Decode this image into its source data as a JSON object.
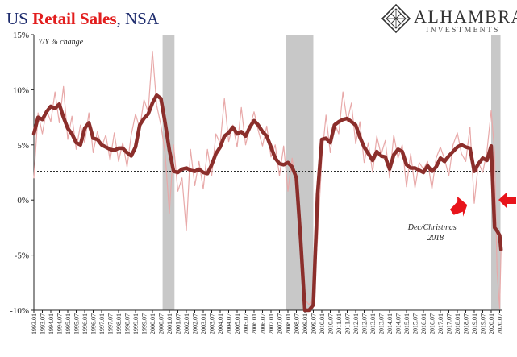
{
  "title": {
    "part1": "US ",
    "part2": "Retail Sales",
    "part3": ", NSA"
  },
  "colors": {
    "title_blue": "#1f2d6e",
    "title_red": "#e21e1e",
    "raw_series": "#e8a9a9",
    "smoothed_series": "#8b2e2b",
    "recession": "#c8c8c8",
    "arrow": "#e8141b"
  },
  "logo": {
    "name": "ALHAMBRA",
    "subtitle": "INVESTMENTS",
    "icon": "diamond-lattice-icon"
  },
  "chart_data": {
    "type": "line",
    "ylabel": "Y/Y % change",
    "ylim": [
      -10,
      15
    ],
    "yticks": [
      "15%",
      "10%",
      "5%",
      "0%",
      "-5%",
      "-10%"
    ],
    "xlim": [
      "1993-01",
      "2020-07"
    ],
    "xticks": [
      "1993.01",
      "1993.07",
      "1994.01",
      "1994.07",
      "1995.01",
      "1995.07",
      "1996.01",
      "1996.07",
      "1997.01",
      "1997.07",
      "1998.01",
      "1998.07",
      "1999.01",
      "1999.07",
      "2000.01",
      "2000.07",
      "2001.01",
      "2001.07",
      "2002.01",
      "2002.07",
      "2003.01",
      "2003.07",
      "2004.01",
      "2004.07",
      "2005.01",
      "2005.07",
      "2006.01",
      "2006.07",
      "2007.01",
      "2007.07",
      "2008.01",
      "2008.07",
      "2009.01",
      "2009.07",
      "2010.01",
      "2010.07",
      "2011.01",
      "2011.07",
      "2012.01",
      "2012.07",
      "2013.01",
      "2013.07",
      "2014.01",
      "2014.07",
      "2015.01",
      "2015.07",
      "2016.01",
      "2016.07",
      "2017.01",
      "2017.07",
      "2018.01",
      "2018.07",
      "2019.01",
      "2019.07",
      "2020.01",
      "2020.07"
    ],
    "reference_line": {
      "y": 2.6,
      "style": "dotted"
    },
    "recessions": [
      {
        "start": 2000.6,
        "end": 2001.3
      },
      {
        "start": 2007.9,
        "end": 2009.5
      },
      {
        "start": 2020.0,
        "end": 2020.55
      }
    ],
    "series": [
      {
        "style": "thin",
        "x": [
          1993.0,
          1993.25,
          1993.5,
          1993.75,
          1994.0,
          1994.25,
          1994.5,
          1994.75,
          1995.0,
          1995.25,
          1995.5,
          1995.75,
          1996.0,
          1996.25,
          1996.5,
          1996.75,
          1997.0,
          1997.25,
          1997.5,
          1997.75,
          1998.0,
          1998.25,
          1998.5,
          1998.75,
          1999.0,
          1999.25,
          1999.5,
          1999.75,
          2000.0,
          2000.25,
          2000.5,
          2000.75,
          2001.0,
          2001.25,
          2001.5,
          2001.75,
          2002.0,
          2002.25,
          2002.5,
          2002.75,
          2003.0,
          2003.25,
          2003.5,
          2003.75,
          2004.0,
          2004.25,
          2004.5,
          2004.75,
          2005.0,
          2005.25,
          2005.5,
          2005.75,
          2006.0,
          2006.25,
          2006.5,
          2006.75,
          2007.0,
          2007.25,
          2007.5,
          2007.75,
          2008.0,
          2008.25,
          2008.5,
          2008.75,
          2009.0,
          2009.25,
          2009.5,
          2009.75,
          2010.0,
          2010.25,
          2010.5,
          2010.75,
          2011.0,
          2011.25,
          2011.5,
          2011.75,
          2012.0,
          2012.25,
          2012.5,
          2012.75,
          2013.0,
          2013.25,
          2013.5,
          2013.75,
          2014.0,
          2014.25,
          2014.5,
          2014.75,
          2015.0,
          2015.25,
          2015.5,
          2015.75,
          2016.0,
          2016.25,
          2016.5,
          2016.75,
          2017.0,
          2017.25,
          2017.5,
          2017.75,
          2018.0,
          2018.25,
          2018.5,
          2018.75,
          2019.0,
          2019.25,
          2019.5,
          2019.75,
          2020.0,
          2020.2,
          2020.35,
          2020.5,
          2020.58
        ],
        "values": [
          2.0,
          7.9,
          6.0,
          8.2,
          7.1,
          9.8,
          7.0,
          10.3,
          5.5,
          7.6,
          4.6,
          6.8,
          5.2,
          7.9,
          4.3,
          6.2,
          4.8,
          5.9,
          3.6,
          6.1,
          3.5,
          5.2,
          3.0,
          5.9,
          7.8,
          6.5,
          9.1,
          8.0,
          13.5,
          8.6,
          6.8,
          4.2,
          -1.2,
          5.0,
          0.8,
          2.0,
          -2.8,
          4.6,
          1.3,
          3.5,
          1.0,
          4.6,
          2.2,
          6.0,
          5.1,
          9.2,
          5.3,
          6.8,
          4.8,
          8.4,
          5.0,
          6.6,
          8.0,
          6.3,
          4.9,
          6.7,
          3.9,
          5.0,
          2.2,
          4.9,
          0.8,
          3.8,
          1.0,
          -5.0,
          -9.0,
          -9.5,
          -8.8,
          -3.5,
          3.8,
          7.7,
          4.3,
          7.0,
          6.0,
          9.8,
          7.1,
          8.8,
          5.1,
          7.1,
          3.4,
          5.2,
          2.5,
          5.8,
          4.1,
          5.4,
          2.0,
          5.9,
          3.8,
          5.0,
          1.2,
          4.2,
          1.1,
          3.4,
          2.8,
          3.5,
          1.0,
          3.8,
          4.8,
          3.7,
          2.2,
          5.0,
          6.1,
          4.2,
          3.5,
          6.6,
          -0.3,
          3.4,
          2.5,
          4.4,
          8.1,
          4.4,
          -6.5,
          -9.8,
          -4.6
        ]
      },
      {
        "style": "thick",
        "x": [
          1993.0,
          1993.25,
          1993.5,
          1993.75,
          1994.0,
          1994.25,
          1994.5,
          1994.75,
          1995.0,
          1995.25,
          1995.5,
          1995.75,
          1996.0,
          1996.25,
          1996.5,
          1996.75,
          1997.0,
          1997.25,
          1997.5,
          1997.75,
          1998.0,
          1998.25,
          1998.5,
          1998.75,
          1999.0,
          1999.25,
          1999.5,
          1999.75,
          2000.0,
          2000.25,
          2000.5,
          2000.75,
          2001.0,
          2001.25,
          2001.5,
          2001.75,
          2002.0,
          2002.25,
          2002.5,
          2002.75,
          2003.0,
          2003.25,
          2003.5,
          2003.75,
          2004.0,
          2004.25,
          2004.5,
          2004.75,
          2005.0,
          2005.25,
          2005.5,
          2005.75,
          2006.0,
          2006.25,
          2006.5,
          2006.75,
          2007.0,
          2007.25,
          2007.5,
          2007.75,
          2008.0,
          2008.25,
          2008.5,
          2008.75,
          2009.0,
          2009.25,
          2009.5,
          2009.75,
          2010.0,
          2010.25,
          2010.5,
          2010.75,
          2011.0,
          2011.25,
          2011.5,
          2011.75,
          2012.0,
          2012.25,
          2012.5,
          2012.75,
          2013.0,
          2013.25,
          2013.5,
          2013.75,
          2014.0,
          2014.25,
          2014.5,
          2014.75,
          2015.0,
          2015.25,
          2015.5,
          2015.75,
          2016.0,
          2016.25,
          2016.5,
          2016.75,
          2017.0,
          2017.25,
          2017.5,
          2017.75,
          2018.0,
          2018.25,
          2018.5,
          2018.75,
          2019.0,
          2019.25,
          2019.5,
          2019.75,
          2020.0,
          2020.2,
          2020.35,
          2020.5,
          2020.58
        ],
        "values": [
          6.0,
          7.5,
          7.3,
          8.0,
          8.5,
          8.3,
          8.7,
          7.5,
          6.5,
          6.0,
          5.2,
          5.0,
          6.5,
          7.0,
          5.6,
          5.5,
          5.0,
          4.8,
          4.6,
          4.5,
          4.7,
          4.7,
          4.3,
          4.0,
          4.8,
          6.8,
          7.4,
          7.8,
          8.8,
          9.5,
          9.2,
          7.0,
          4.5,
          2.6,
          2.5,
          2.8,
          2.9,
          2.7,
          2.6,
          2.8,
          2.5,
          2.4,
          3.2,
          4.2,
          4.8,
          5.8,
          6.1,
          6.6,
          6.0,
          6.2,
          5.8,
          6.6,
          7.2,
          6.8,
          6.2,
          5.8,
          4.8,
          3.8,
          3.3,
          3.2,
          3.4,
          3.0,
          2.0,
          -3.5,
          -10.0,
          -10.0,
          -9.5,
          0.5,
          5.5,
          5.6,
          5.2,
          6.8,
          7.1,
          7.3,
          7.4,
          7.1,
          6.8,
          5.7,
          4.8,
          4.2,
          3.6,
          4.4,
          4.0,
          3.9,
          2.8,
          4.1,
          4.6,
          4.4,
          3.2,
          2.9,
          2.9,
          2.7,
          2.5,
          3.1,
          2.6,
          3.0,
          3.8,
          3.5,
          4.0,
          4.4,
          4.8,
          5.0,
          4.8,
          4.7,
          2.6,
          3.3,
          3.8,
          3.6,
          4.9,
          -2.5,
          -2.8,
          -3.2,
          -4.5
        ]
      }
    ],
    "annotations": [
      {
        "lines": [
          "Dec/Christmas",
          "2018"
        ]
      }
    ]
  }
}
